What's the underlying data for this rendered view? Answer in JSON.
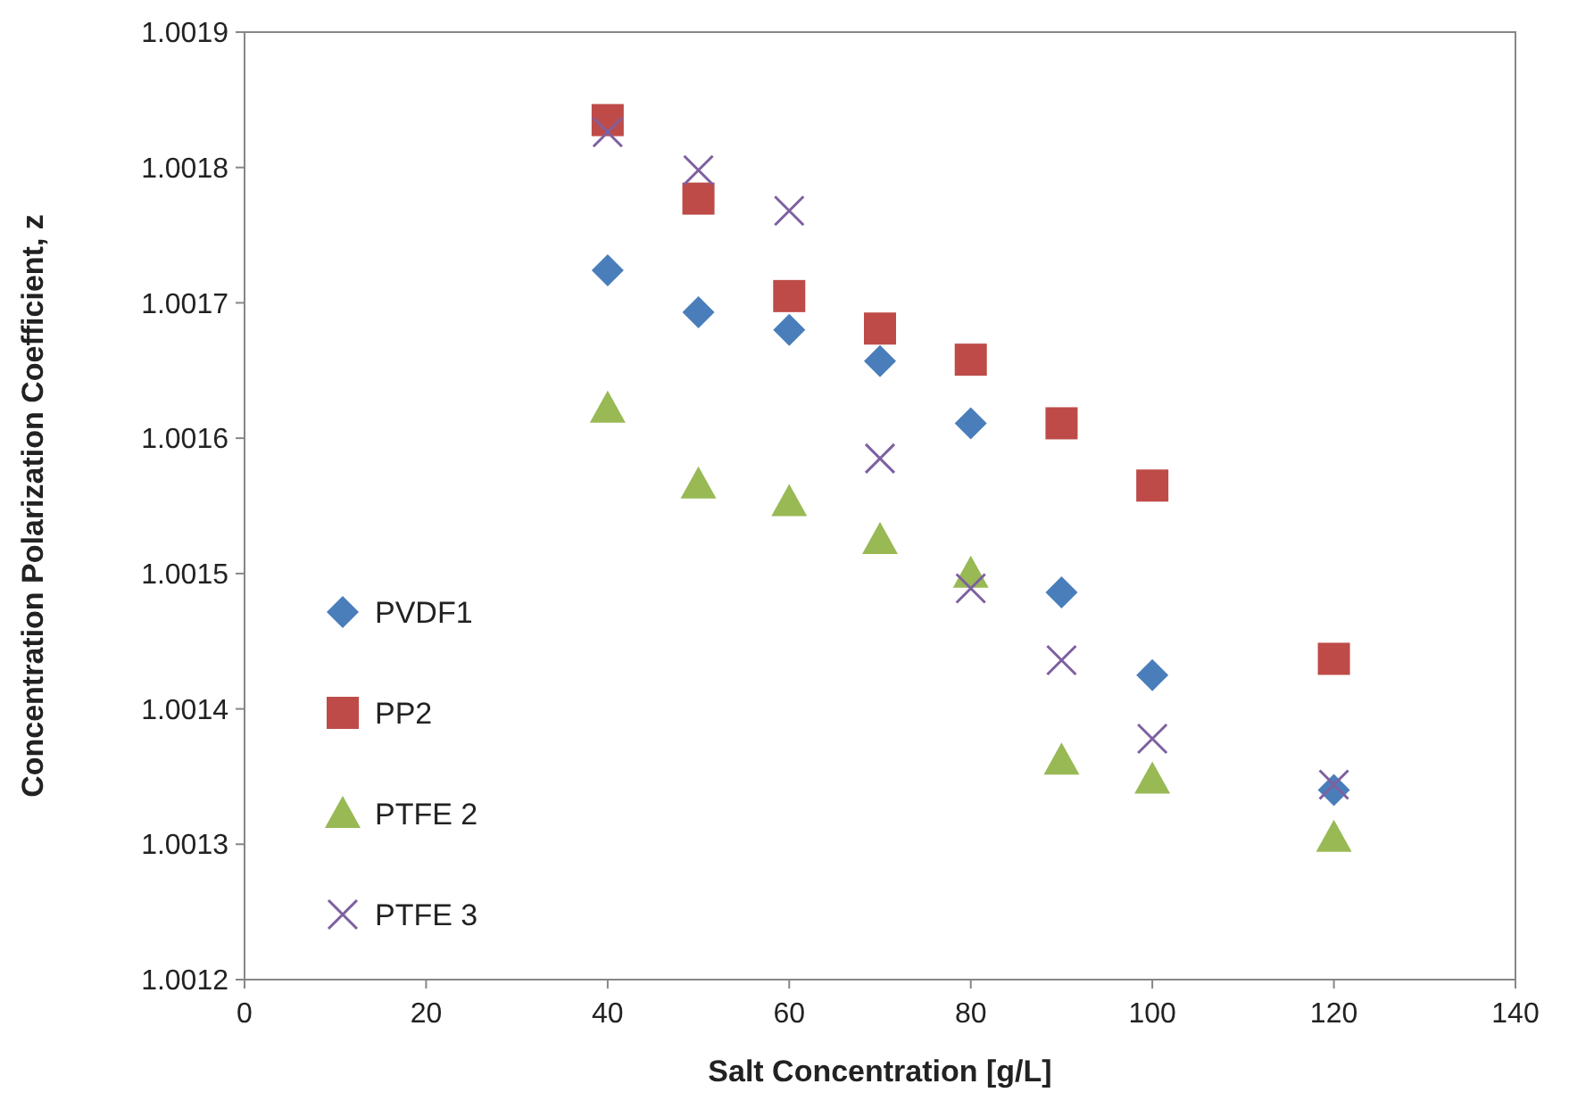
{
  "chart_data": {
    "type": "scatter",
    "xlabel": "Salt Concentration [g/L]",
    "ylabel": "Concentration Polarization Coefficient, z",
    "x": [
      40,
      50,
      60,
      70,
      80,
      90,
      100,
      120
    ],
    "xlim": [
      0,
      140
    ],
    "xticks": [
      0,
      20,
      40,
      60,
      80,
      100,
      120,
      140
    ],
    "ylim": [
      1.0012,
      1.0019
    ],
    "yticks": [
      1.0012,
      1.0013,
      1.0014,
      1.0015,
      1.0016,
      1.0017,
      1.0018,
      1.0019
    ],
    "grid": false,
    "legend": "left",
    "series": [
      {
        "name": "PVDF1",
        "color": "#4a7ebb",
        "marker": "diamond",
        "values": [
          1.001724,
          1.001693,
          1.00168,
          1.001657,
          1.001611,
          1.001486,
          1.001425,
          1.00134
        ]
      },
      {
        "name": "PP2",
        "color": "#be4b48",
        "marker": "square",
        "values": [
          1.001835,
          1.001777,
          1.001705,
          1.001681,
          1.001658,
          1.001611,
          1.001565,
          1.001437
        ]
      },
      {
        "name": "PTFE 2",
        "color": "#98b954",
        "marker": "triangle",
        "values": [
          1.001622,
          1.001566,
          1.001553,
          1.001525,
          1.0015,
          1.001362,
          1.001348,
          1.001305
        ]
      },
      {
        "name": "PTFE 3",
        "color": "#7d60a0",
        "marker": "cross",
        "values": [
          1.001826,
          1.001798,
          1.001768,
          1.001585,
          1.001489,
          1.001436,
          1.001378,
          1.001344
        ]
      }
    ]
  }
}
